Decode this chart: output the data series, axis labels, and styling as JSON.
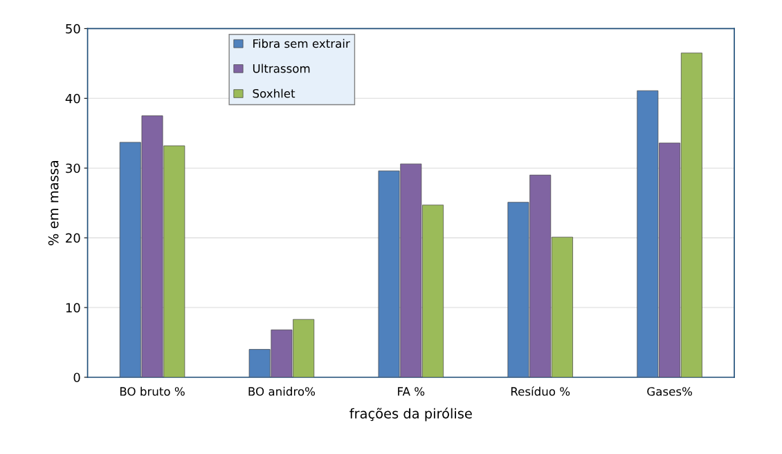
{
  "chart_data": {
    "type": "bar",
    "xlabel": "frações da pirólise",
    "ylabel": "% em massa",
    "categories": [
      "BO bruto %",
      "BO anidro%",
      "FA %",
      "Resíduo %",
      "Gases%"
    ],
    "series": [
      {
        "name": "Fibra sem extrair",
        "color": "#4f81bd",
        "values": [
          33.7,
          4.0,
          29.6,
          25.1,
          41.1
        ]
      },
      {
        "name": "Ultrassom",
        "color": "#8064a2",
        "values": [
          37.5,
          6.8,
          30.6,
          29.0,
          33.6
        ]
      },
      {
        "name": "Soxhlet",
        "color": "#9bbb59",
        "values": [
          33.2,
          8.3,
          24.7,
          20.1,
          46.5
        ]
      }
    ],
    "ylim": [
      0,
      50
    ],
    "yticks": [
      0,
      10,
      20,
      30,
      40,
      50
    ],
    "grid": "y",
    "legend": "top left"
  }
}
